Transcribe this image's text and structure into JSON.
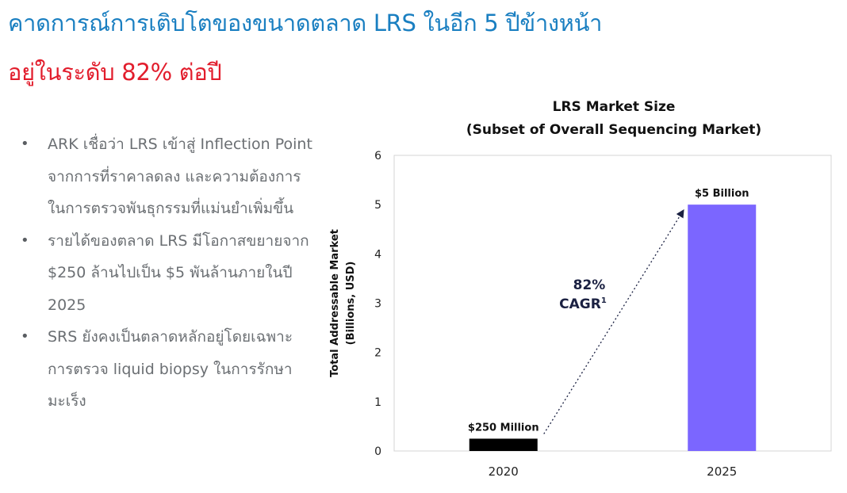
{
  "slide": {
    "title_line1": "คาดการณ์การเติบโตของขนาดตลาด LRS ในอีก 5 ปีข้างหน้า",
    "title_line2": "อยู่ในระดับ 82% ต่อปี",
    "bullets": [
      {
        "text": "ARK เชื่อว่า LRS เข้าสู่ Inflection Point จากการที่ราคาลดลง และความต้องการในการตรวจพันธุกรรมที่แม่นยำเพิ่มขึ้น"
      },
      {
        "text": "รายได้ของตลาด LRS มีโอกาสขยายจาก $250 ล้านไปเป็น $5 พันล้านภายในปี 2025"
      },
      {
        "text": "SRS ยังคงเป็นตลาดหลักอยู่โดยเฉพาะการตรวจ liquid biopsy ในการรักษามะเร็ง"
      }
    ],
    "bullet_symbol": "•"
  },
  "chart_data": {
    "type": "bar",
    "title": "LRS Market Size",
    "subtitle": "(Subset of Overall Sequencing Market)",
    "ylabel": "Total Addressable Market",
    "ylabel2": "(Billions, USD)",
    "xlabel": "",
    "categories": [
      "2020",
      "2025"
    ],
    "values": [
      0.25,
      5
    ],
    "data_labels": [
      "$250 Million",
      "$5 Billion"
    ],
    "bar_colors": [
      "#000000",
      "#7b66ff"
    ],
    "ylim": [
      0,
      6
    ],
    "yticks": [
      0,
      1,
      2,
      3,
      4,
      5,
      6
    ],
    "annotation_line1": "82%",
    "annotation_line2": "CAGR",
    "annotation_sup": "1",
    "annotation_color": "#1b2142",
    "arrow_style": "dotted",
    "grid": false
  }
}
